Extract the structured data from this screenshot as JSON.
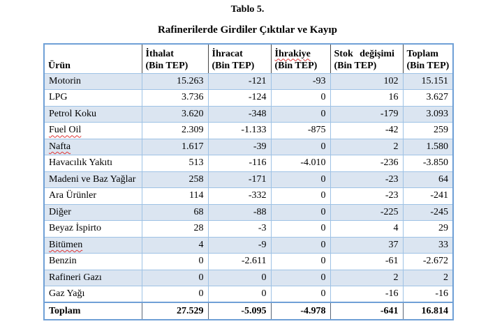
{
  "page": {
    "title": "Tablo 5.",
    "subtitle": "Rafinerilerde Girdiler Çıktılar ve Kayıp"
  },
  "table": {
    "columns": [
      {
        "label": "Ürün",
        "unit": ""
      },
      {
        "label": "İthalat",
        "unit": "(Bin TEP)"
      },
      {
        "label": "İhracat",
        "unit": "(Bin TEP)"
      },
      {
        "label": "İhrakiye",
        "unit": "(Bin TEP)",
        "misspelled": true
      },
      {
        "label": "Stok değişimi",
        "unit": "(Bin TEP)"
      },
      {
        "label": "Toplam",
        "unit": "(Bin TEP)"
      }
    ],
    "rows": [
      {
        "product": "Motorin",
        "values": [
          "15.263",
          "-121",
          "-93",
          "102",
          "15.151"
        ]
      },
      {
        "product": "LPG",
        "values": [
          "3.736",
          "-124",
          "0",
          "16",
          "3.627"
        ]
      },
      {
        "product": "Petrol Koku",
        "values": [
          "3.620",
          "-348",
          "0",
          "-179",
          "3.093"
        ]
      },
      {
        "product": "Fuel Oil",
        "values": [
          "2.309",
          "-1.133",
          "-875",
          "-42",
          "259"
        ],
        "misspelled": true
      },
      {
        "product": "Nafta",
        "values": [
          "1.617",
          "-39",
          "0",
          "2",
          "1.580"
        ],
        "misspelled": true
      },
      {
        "product": "Havacılık Yakıtı",
        "values": [
          "513",
          "-116",
          "-4.010",
          "-236",
          "-3.850"
        ]
      },
      {
        "product": "Madeni ve Baz Yağlar",
        "values": [
          "258",
          "-171",
          "0",
          "-23",
          "64"
        ]
      },
      {
        "product": "Ara Ürünler",
        "values": [
          "114",
          "-332",
          "0",
          "-23",
          "-241"
        ]
      },
      {
        "product": "Diğer",
        "values": [
          "68",
          "-88",
          "0",
          "-225",
          "-245"
        ]
      },
      {
        "product": "Beyaz İspirto",
        "values": [
          "28",
          "-3",
          "0",
          "4",
          "29"
        ]
      },
      {
        "product": "Bitümen",
        "values": [
          "4",
          "-9",
          "0",
          "37",
          "33"
        ],
        "misspelled": true
      },
      {
        "product": "Benzin",
        "values": [
          "0",
          "-2.611",
          "0",
          "-61",
          "-2.672"
        ]
      },
      {
        "product": "Rafineri Gazı",
        "values": [
          "0",
          "0",
          "0",
          "2",
          "2"
        ]
      },
      {
        "product": "Gaz Yağı",
        "values": [
          "0",
          "0",
          "0",
          "-16",
          "-16"
        ]
      }
    ],
    "total_row": {
      "product": "Toplam",
      "values": [
        "27.529",
        "-5.095",
        "-4.978",
        "-641",
        "16.814"
      ]
    }
  },
  "colors": {
    "row_shading": "#dbe5f1",
    "grid_line": "#9ec2e5",
    "outer_border": "#6fa0d6",
    "spellcheck_underline": "#e03535",
    "text": "#000000"
  }
}
